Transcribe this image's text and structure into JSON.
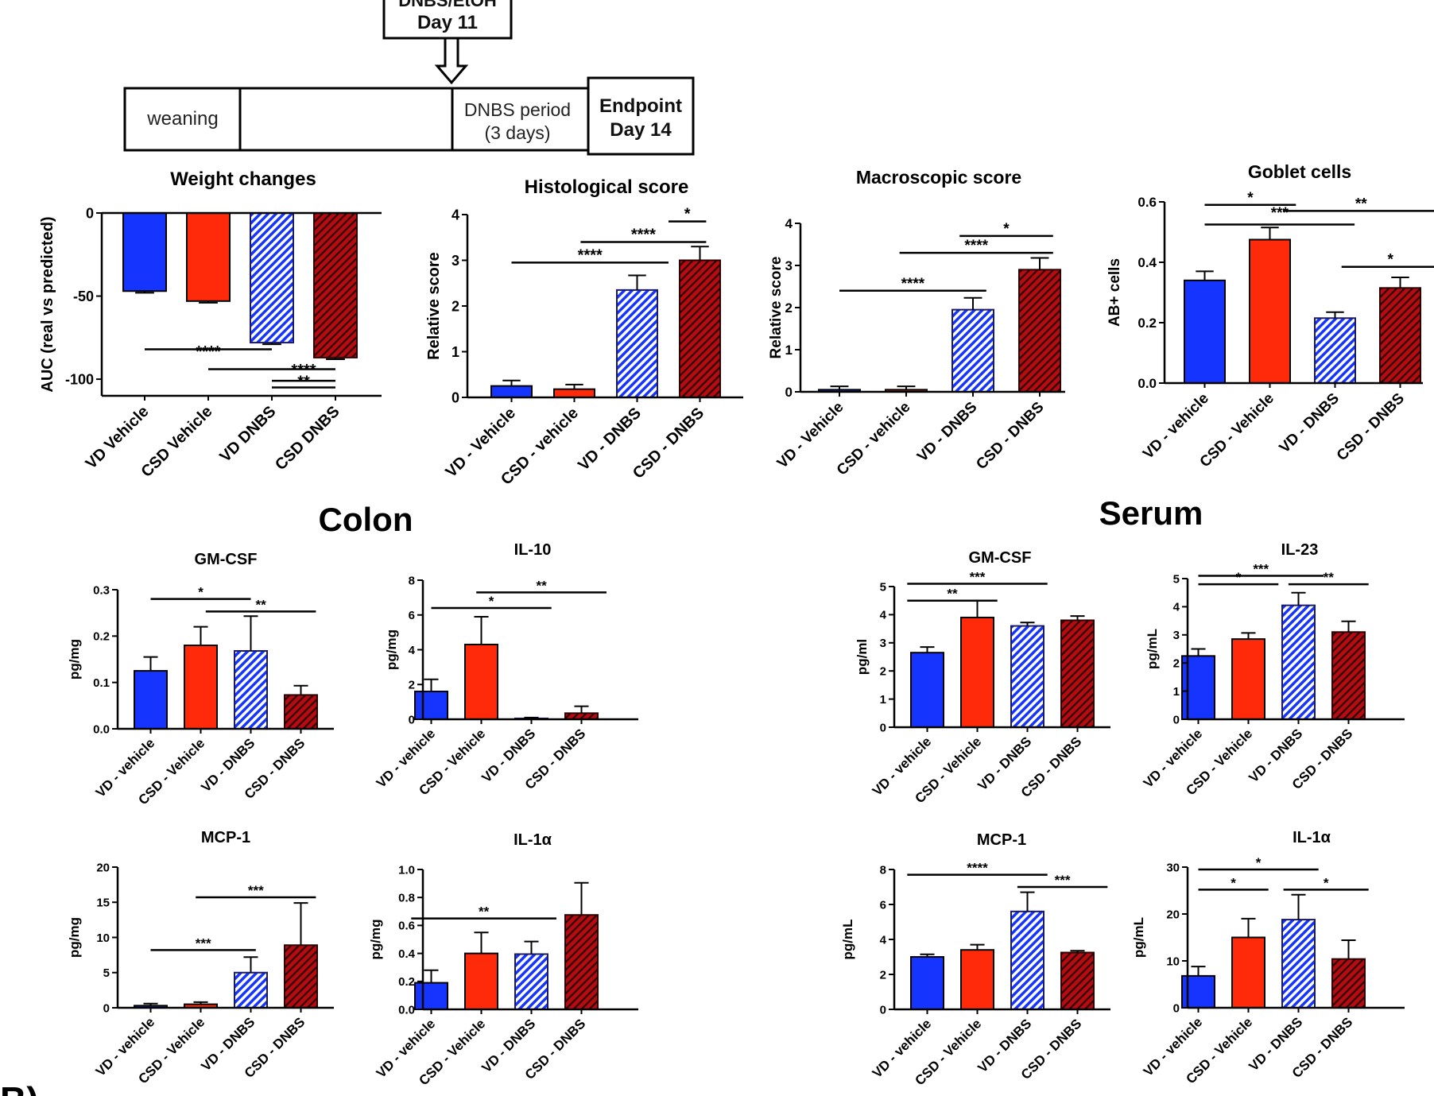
{
  "timeline": {
    "treatment_line1": "DNBS/EtOH",
    "treatment_line2": "Day 11",
    "segments": [
      "weaning",
      "",
      "DNBS period",
      "(3 days)"
    ],
    "endpoint_line1": "Endpoint",
    "endpoint_line2": "Day 14"
  },
  "sections": {
    "colon": "Colon",
    "serum": "Serum",
    "panel_b": "B)"
  },
  "colors": {
    "blue": "#1535ff",
    "red": "#ff2a0a",
    "darkred": "#b50c12"
  },
  "chart_data": [
    {
      "id": "weight",
      "type": "bar",
      "title": "Weight changes",
      "ylabel": "AUC (real vs predicted)",
      "categories": [
        "VD Vehicle",
        "CSD Vehicle",
        "VD DNBS",
        "CSD DNBS"
      ],
      "values": [
        -47,
        -53,
        -78,
        -87
      ],
      "errors": [
        1,
        1,
        1,
        1
      ],
      "ylim": [
        -110,
        0
      ],
      "yticks": [
        0,
        -50,
        -100
      ],
      "sig": [
        {
          "from": 0,
          "to": 2,
          "y": -82,
          "label": "****",
          "ly": -88
        },
        {
          "from": 1,
          "to": 3,
          "y": -94,
          "label": "",
          "ly": -94
        },
        {
          "from": 2,
          "to": 3,
          "y": -101,
          "label": "****",
          "ly": -99
        },
        {
          "from": 2,
          "to": 3,
          "y": -105,
          "label": "**",
          "ly": -106
        }
      ]
    },
    {
      "id": "histo",
      "type": "bar",
      "title": "Histological score",
      "ylabel": "Relative score",
      "categories": [
        "VD - Vehicle",
        "CSD - vehicle",
        "VD - DNBS",
        "CSD - DNBS"
      ],
      "values": [
        0.25,
        0.18,
        2.35,
        3.0
      ],
      "errors": [
        0.12,
        0.1,
        0.32,
        0.3
      ],
      "ylim": [
        0,
        4
      ],
      "yticks": [
        0,
        1,
        2,
        3,
        4
      ],
      "sig": [
        {
          "from": 0,
          "to": 2.5,
          "y": 2.95,
          "label": "****"
        },
        {
          "from": 1.1,
          "to": 3.1,
          "y": 3.4,
          "label": "****"
        },
        {
          "from": 2.5,
          "to": 3.1,
          "y": 3.85,
          "label": "*"
        }
      ]
    },
    {
      "id": "macro",
      "type": "bar",
      "title": "Macroscopic score",
      "ylabel": "Relative score",
      "categories": [
        "VD - Vehicle",
        "CSD - vehicle",
        "VD - DNBS",
        "CSD - DNBS"
      ],
      "values": [
        0.05,
        0.05,
        1.95,
        2.9
      ],
      "errors": [
        0.08,
        0.08,
        0.28,
        0.28
      ],
      "ylim": [
        0,
        4
      ],
      "yticks": [
        0,
        1,
        2,
        3,
        4
      ],
      "sig": [
        {
          "from": 0,
          "to": 2.2,
          "y": 2.4,
          "label": "****"
        },
        {
          "from": 0.9,
          "to": 3.2,
          "y": 3.3,
          "label": "****"
        },
        {
          "from": 1.8,
          "to": 3.2,
          "y": 3.7,
          "label": "*"
        }
      ]
    },
    {
      "id": "goblet",
      "type": "bar",
      "title": "Goblet cells",
      "ylabel": "AB+ cells",
      "categories": [
        "VD - vehicle",
        "CSD - Vehicle",
        "VD - DNBS",
        "CSD - DNBS"
      ],
      "values": [
        0.34,
        0.475,
        0.215,
        0.315
      ],
      "errors": [
        0.03,
        0.04,
        0.02,
        0.035
      ],
      "ylim": [
        0,
        0.6
      ],
      "yticks": [
        "0.0",
        "0.2",
        "0.4",
        "0.6"
      ],
      "sig": [
        {
          "from": 0,
          "to": 1.4,
          "y": 0.59,
          "label": "*"
        },
        {
          "from": 1.2,
          "to": 3.6,
          "y": 0.57,
          "label": "**"
        },
        {
          "from": 0,
          "to": 2.3,
          "y": 0.525,
          "label": "***",
          "ly": 0.54
        },
        {
          "from": 2.1,
          "to": 3.6,
          "y": 0.385,
          "label": "*"
        }
      ]
    },
    {
      "id": "colon_gmcsf",
      "type": "bar",
      "title": "GM-CSF",
      "ylabel": "pg/mg",
      "categories": [
        "VD - vehicle",
        "CSD - Vehicle",
        "VD - DNBS",
        "CSD - DNBS"
      ],
      "values": [
        0.125,
        0.18,
        0.168,
        0.073
      ],
      "errors": [
        0.03,
        0.04,
        0.075,
        0.02
      ],
      "ylim": [
        0,
        0.3
      ],
      "yticks": [
        "0.0",
        "0.1",
        "0.2",
        "0.3"
      ],
      "sig": [
        {
          "from": 0,
          "to": 2,
          "y": 0.28,
          "label": "*"
        },
        {
          "from": 1.1,
          "to": 3.3,
          "y": 0.253,
          "label": "**"
        }
      ]
    },
    {
      "id": "colon_il10",
      "type": "bar",
      "title": "IL-10",
      "ylabel": "pg/mg",
      "categories": [
        "VD - vehicle",
        "CSD - Vehicle",
        "VD - DNBS",
        "CSD - DNBS"
      ],
      "values": [
        1.6,
        4.3,
        0.05,
        0.35
      ],
      "errors": [
        0.7,
        1.6,
        0.05,
        0.4
      ],
      "ylim": [
        0,
        8
      ],
      "yticks": [
        0,
        2,
        4,
        6,
        8
      ],
      "sig": [
        {
          "from": 0,
          "to": 2.4,
          "y": 6.4,
          "label": "*"
        },
        {
          "from": 0.9,
          "to": 3.5,
          "y": 7.3,
          "label": "**"
        }
      ]
    },
    {
      "id": "serum_gmcsf",
      "type": "bar",
      "title": "GM-CSF",
      "ylabel": "pg/ml",
      "categories": [
        "VD - vehicle",
        "CSD - Vehicle",
        "VD - DNBS",
        "CSD - DNBS"
      ],
      "values": [
        2.65,
        3.9,
        3.6,
        3.8
      ],
      "errors": [
        0.2,
        0.6,
        0.12,
        0.15
      ],
      "ylim": [
        0,
        5
      ],
      "yticks": [
        0,
        1,
        2,
        3,
        4,
        5
      ],
      "sig": [
        {
          "from": -0.4,
          "to": 2.4,
          "y": 5.1,
          "label": "***"
        },
        {
          "from": -0.4,
          "to": 1.4,
          "y": 4.5,
          "label": "**"
        }
      ]
    },
    {
      "id": "serum_il23",
      "type": "bar",
      "title": "IL-23",
      "ylabel": "pg/mL",
      "categories": [
        "VD - vehicle",
        "CSD - Vehicle",
        "VD - DNBS",
        "CSD - DNBS"
      ],
      "values": [
        2.25,
        2.85,
        4.05,
        3.1
      ],
      "errors": [
        0.25,
        0.22,
        0.45,
        0.38
      ],
      "ylim": [
        0,
        5
      ],
      "yticks": [
        0,
        1,
        2,
        3,
        4,
        5
      ],
      "sig": [
        {
          "from": 0,
          "to": 2.5,
          "y": 5.1,
          "label": "***"
        },
        {
          "from": 0,
          "to": 1.6,
          "y": 4.8,
          "label": "*"
        },
        {
          "from": 1.8,
          "to": 3.4,
          "y": 4.8,
          "label": "**"
        }
      ]
    },
    {
      "id": "colon_mcp1",
      "type": "bar",
      "title": "MCP-1",
      "ylabel": "pg/mg",
      "categories": [
        "VD - vehicle",
        "CSD - Vehicle",
        "VD - DNBS",
        "CSD - DNBS"
      ],
      "values": [
        0.3,
        0.5,
        5.0,
        8.9
      ],
      "errors": [
        0.3,
        0.3,
        2.2,
        6.0
      ],
      "ylim": [
        0,
        20
      ],
      "yticks": [
        0,
        5,
        10,
        15,
        20
      ],
      "sig": [
        {
          "from": 0,
          "to": 2.1,
          "y": 8.2,
          "label": "***"
        },
        {
          "from": 0.9,
          "to": 3.3,
          "y": 15.7,
          "label": "***"
        }
      ]
    },
    {
      "id": "colon_il1a",
      "type": "bar",
      "title": "IL-1α",
      "ylabel": "pg/mg",
      "categories": [
        "VD - vehicle",
        "CSD - Vehicle",
        "VD - DNBS",
        "CSD - DNBS"
      ],
      "values": [
        0.19,
        0.4,
        0.395,
        0.675
      ],
      "errors": [
        0.09,
        0.15,
        0.09,
        0.23
      ],
      "ylim": [
        0,
        1.0
      ],
      "yticks": [
        "0.0",
        "0.2",
        "0.4",
        "0.6",
        "0.8",
        "1.0"
      ],
      "sig": [
        {
          "from": -0.4,
          "to": 2.5,
          "y": 0.65,
          "label": "**"
        }
      ]
    },
    {
      "id": "serum_mcp1",
      "type": "bar",
      "title": "MCP-1",
      "ylabel": "pg/mL",
      "categories": [
        "VD - vehicle",
        "CSD - Vehicle",
        "VD - DNBS",
        "CSD - DNBS"
      ],
      "values": [
        3.0,
        3.4,
        5.6,
        3.25
      ],
      "errors": [
        0.15,
        0.3,
        1.1,
        0.1
      ],
      "ylim": [
        0,
        8
      ],
      "yticks": [
        0,
        2,
        4,
        6,
        8
      ],
      "sig": [
        {
          "from": -0.4,
          "to": 2.4,
          "y": 7.7,
          "label": "****"
        },
        {
          "from": 1.8,
          "to": 3.6,
          "y": 7.0,
          "label": "***"
        }
      ]
    },
    {
      "id": "serum_il1a",
      "type": "bar",
      "title": "IL-1α",
      "ylabel": "pg/mL",
      "categories": [
        "VD - vehicle",
        "CSD - Vehicle",
        "VD - DNBS",
        "CSD - DNBS"
      ],
      "values": [
        6.8,
        15.0,
        18.8,
        10.4
      ],
      "errors": [
        2.0,
        4.0,
        5.3,
        4.0
      ],
      "ylim": [
        0,
        30
      ],
      "yticks": [
        0,
        10,
        20,
        30
      ],
      "sig": [
        {
          "from": 0,
          "to": 2.4,
          "y": 29.5,
          "label": "*"
        },
        {
          "from": 0,
          "to": 1.4,
          "y": 25.2,
          "label": "*"
        },
        {
          "from": 1.7,
          "to": 3.4,
          "y": 25.2,
          "label": "*"
        }
      ]
    }
  ]
}
